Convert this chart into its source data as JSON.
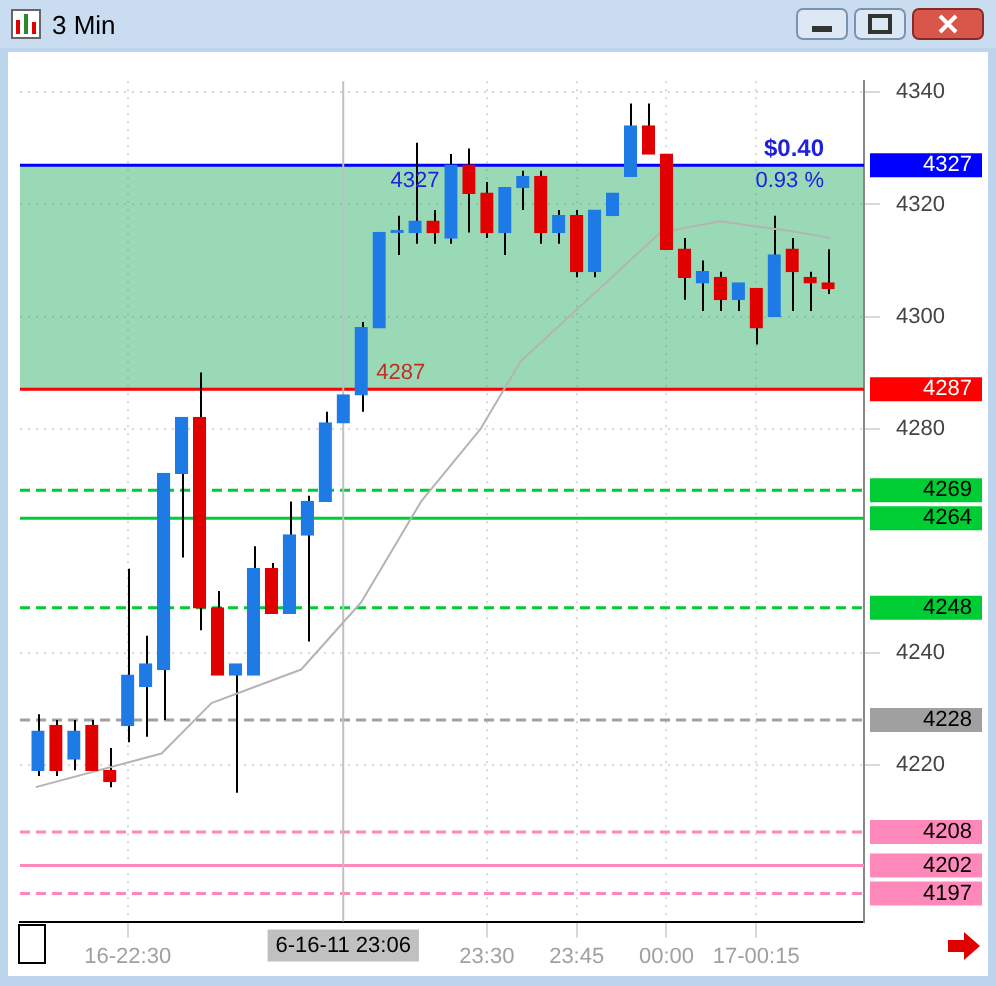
{
  "chart_data": {
    "type": "candlestick",
    "title": "3 Min",
    "x": [
      22.25,
      22.3,
      22.35,
      22.4,
      22.45,
      22.5,
      22.55,
      22.6,
      22.65,
      22.7,
      22.75,
      22.8,
      22.85,
      22.9,
      22.95,
      23,
      23.05,
      23.1,
      23.15,
      23.2,
      23.25,
      23.3,
      23.35,
      23.4,
      23.45,
      23.5,
      23.55,
      23.6,
      23.65,
      23.7,
      23.75,
      23.8,
      23.85,
      23.9,
      23.95,
      24,
      24.05,
      24.1,
      24.15,
      24.2,
      24.25,
      24.3,
      24.35,
      24.4,
      24.45
    ],
    "ohlc": [
      [
        4219,
        4229,
        4218,
        4226
      ],
      [
        4227,
        4228,
        4218,
        4219
      ],
      [
        4221,
        4228,
        4219,
        4226
      ],
      [
        4227,
        4228,
        4219,
        4219
      ],
      [
        4219,
        4223,
        4216,
        4217
      ],
      [
        4227,
        4255,
        4224,
        4236
      ],
      [
        4234,
        4243,
        4225,
        4238
      ],
      [
        4237,
        4272,
        4228,
        4272
      ],
      [
        4272,
        4282,
        4257,
        4282
      ],
      [
        4282,
        4290,
        4244,
        4248
      ],
      [
        4248,
        4251,
        4236,
        4236
      ],
      [
        4236,
        4238,
        4215,
        4238
      ],
      [
        4236,
        4259,
        4236,
        4255
      ],
      [
        4255,
        4256,
        4247,
        4247
      ],
      [
        4247,
        4267,
        4247,
        4261
      ],
      [
        4261,
        4268,
        4242,
        4267
      ],
      [
        4267,
        4283,
        4267,
        4281
      ],
      [
        4281,
        4286,
        4281,
        4286
      ],
      [
        4286,
        4299,
        4283,
        4298
      ],
      [
        4298,
        4315,
        4298,
        4315
      ],
      [
        4315,
        4318,
        4311,
        4315
      ],
      [
        4315,
        4331,
        4313,
        4317
      ],
      [
        4317,
        4319,
        4313,
        4315
      ],
      [
        4314,
        4329,
        4313,
        4327
      ],
      [
        4327,
        4330,
        4315,
        4322
      ],
      [
        4322,
        4324,
        4314,
        4315
      ],
      [
        4315,
        4323,
        4311,
        4323
      ],
      [
        4323,
        4326,
        4319,
        4325
      ],
      [
        4325,
        4326,
        4313,
        4315
      ],
      [
        4315,
        4319,
        4313,
        4318
      ],
      [
        4318,
        4319,
        4307,
        4308
      ],
      [
        4308,
        4319,
        4307,
        4319
      ],
      [
        4318,
        4322,
        4318,
        4322
      ],
      [
        4325,
        4338,
        4325,
        4334
      ],
      [
        4334,
        4338,
        4329,
        4329
      ],
      [
        4329,
        4329,
        4312,
        4312
      ],
      [
        4312,
        4314,
        4303,
        4307
      ],
      [
        4306,
        4310,
        4301,
        4308
      ],
      [
        4307,
        4308,
        4301,
        4303
      ],
      [
        4303,
        4306,
        4301,
        4306
      ],
      [
        4305,
        4305,
        4295,
        4298
      ],
      [
        4300,
        4318,
        4300,
        4311
      ],
      [
        4312,
        4314,
        4301,
        4308
      ],
      [
        4307,
        4308,
        4301,
        4306
      ],
      [
        4306,
        4312,
        4304,
        4305
      ]
    ],
    "colors": [
      "#1e7be6",
      "#e00000",
      "#1e7be6",
      "#e00000",
      "#e00000",
      "#1e7be6",
      "#1e7be6",
      "#1e7be6",
      "#1e7be6",
      "#e00000",
      "#e00000",
      "#1e7be6",
      "#1e7be6",
      "#e00000",
      "#1e7be6",
      "#1e7be6",
      "#1e7be6",
      "#1e7be6",
      "#1e7be6",
      "#1e7be6",
      "#1e7be6",
      "#1e7be6",
      "#e00000",
      "#1e7be6",
      "#e00000",
      "#e00000",
      "#1e7be6",
      "#1e7be6",
      "#e00000",
      "#1e7be6",
      "#e00000",
      "#1e7be6",
      "#1e7be6",
      "#1e7be6",
      "#e00000",
      "#e00000",
      "#e00000",
      "#1e7be6",
      "#e00000",
      "#1e7be6",
      "#e00000",
      "#1e7be6",
      "#e00000",
      "#e00000",
      "#e00000"
    ],
    "series": [
      {
        "type": "line",
        "color": "#b4b4b4",
        "x": [
          22.244,
          22.594,
          22.733,
          22.983,
          23.15,
          23.317,
          23.483,
          23.594,
          23.983,
          24.15,
          24.372,
          24.456
        ],
        "values": [
          4216,
          4222,
          4231,
          4237,
          4249,
          4267,
          4280,
          4292,
          4315,
          4317,
          4315,
          4314
        ]
      }
    ],
    "xlim": [
      22.2,
      24.55
    ],
    "xticks": [
      {
        "value": 22.5,
        "label": "16-22:30"
      },
      {
        "value": 23.5,
        "label": "23:30"
      },
      {
        "value": 23.75,
        "label": "23:45"
      },
      {
        "value": 24,
        "label": "00:00"
      },
      {
        "value": 24.25,
        "label": "17-00:15"
      }
    ],
    "ylim": [
      4192,
      4342
    ],
    "yticks": [
      4220,
      4240,
      4280,
      4300,
      4320,
      4340
    ],
    "grid": true,
    "bands": [
      {
        "axis": "y",
        "from": 4287,
        "to": 4327,
        "color": "#33b36b"
      }
    ],
    "ref_lines": [
      {
        "axis": "y",
        "value": 4327,
        "label": "4327",
        "color": "#0000ff",
        "line_style": "solid"
      },
      {
        "axis": "y",
        "value": 4287,
        "label": "4287",
        "color": "#ff0000",
        "line_style": "solid"
      },
      {
        "axis": "y",
        "value": 4269,
        "label": "4269",
        "color": "#00cc33",
        "line_style": "dashed"
      },
      {
        "axis": "y",
        "value": 4264,
        "label": "4264",
        "color": "#00cc33",
        "line_style": "solid"
      },
      {
        "axis": "y",
        "value": 4248,
        "label": "4248",
        "color": "#00cc33",
        "line_style": "dashed"
      },
      {
        "axis": "y",
        "value": 4228,
        "label": "4228",
        "color": "#a0a0a0",
        "line_style": "dashed"
      },
      {
        "axis": "y",
        "value": 4208,
        "label": "4208",
        "color": "#ff88bb",
        "line_style": "dashed"
      },
      {
        "axis": "y",
        "value": 4202,
        "label": "4202",
        "color": "#ff88bb",
        "line_style": "solid"
      },
      {
        "axis": "y",
        "value": 4197,
        "label": "4197",
        "color": "#ff88bb",
        "line_style": "dashed"
      },
      {
        "axis": "x",
        "value": 23.1,
        "label": "6-16-11 23:06",
        "color": "#c0c0c0",
        "line_style": "solid"
      }
    ],
    "annotations": [
      {
        "text": "4327",
        "x": 23.3,
        "y": 4327
      },
      {
        "text": "4287",
        "x": 23.26,
        "y": 4287
      },
      "$0.40",
      "0.93 %"
    ],
    "legend": false
  }
}
